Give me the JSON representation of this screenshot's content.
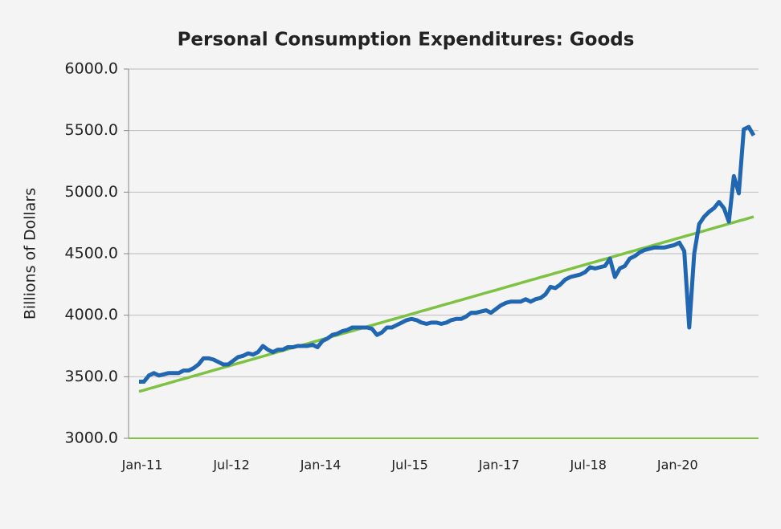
{
  "chart_data": {
    "type": "line",
    "title": "Personal Consumption Expenditures: Goods",
    "ylabel": "Billions of Dollars",
    "categories": [
      "Jan-11",
      null,
      null,
      null,
      null,
      null,
      null,
      null,
      null,
      null,
      null,
      null,
      null,
      null,
      null,
      null,
      null,
      null,
      "Jul-12",
      null,
      null,
      null,
      null,
      null,
      null,
      null,
      null,
      null,
      null,
      null,
      null,
      null,
      null,
      null,
      null,
      null,
      "Jan-14",
      null,
      null,
      null,
      null,
      null,
      null,
      null,
      null,
      null,
      null,
      null,
      null,
      null,
      null,
      null,
      null,
      null,
      "Jul-15",
      null,
      null,
      null,
      null,
      null,
      null,
      null,
      null,
      null,
      null,
      null,
      null,
      null,
      null,
      null,
      null,
      null,
      "Jan-17",
      null,
      null,
      null,
      null,
      null,
      null,
      null,
      null,
      null,
      null,
      null,
      null,
      null,
      null,
      null,
      null,
      null,
      "Jul-18",
      null,
      null,
      null,
      null,
      null,
      null,
      null,
      null,
      null,
      null,
      null,
      null,
      null,
      null,
      null,
      null,
      null,
      "Jan-20",
      null,
      null,
      null,
      null,
      null,
      null,
      null,
      null,
      null,
      null,
      null,
      null,
      null,
      null,
      null,
      null
    ],
    "series": [
      {
        "color": "#2166b0",
        "values": [
          3460,
          3460,
          3510,
          3530,
          3510,
          3520,
          3530,
          3530,
          3530,
          3550,
          3550,
          3570,
          3600,
          3650,
          3650,
          3640,
          3620,
          3600,
          3600,
          3630,
          3660,
          3670,
          3690,
          3680,
          3700,
          3750,
          3720,
          3700,
          3720,
          3720,
          3740,
          3740,
          3750,
          3750,
          3750,
          3760,
          3740,
          3790,
          3810,
          3840,
          3850,
          3870,
          3880,
          3900,
          3900,
          3900,
          3900,
          3890,
          3840,
          3860,
          3900,
          3900,
          3920,
          3940,
          3960,
          3970,
          3960,
          3940,
          3930,
          3940,
          3940,
          3930,
          3940,
          3960,
          3970,
          3970,
          3990,
          4020,
          4020,
          4030,
          4040,
          4020,
          4050,
          4080,
          4100,
          4110,
          4110,
          4110,
          4130,
          4110,
          4130,
          4140,
          4170,
          4230,
          4220,
          4250,
          4290,
          4310,
          4320,
          4330,
          4350,
          4390,
          4380,
          4390,
          4400,
          4460,
          4310,
          4380,
          4400,
          4460,
          4480,
          4510,
          4530,
          4540,
          4550,
          4550,
          4550,
          4560,
          4570,
          4590,
          4520,
          3900,
          4500,
          4740,
          4800,
          4840,
          4870,
          4920,
          4870,
          4760,
          5130,
          4990,
          5510,
          5530,
          5460
        ]
      },
      {
        "color": "#7dc242",
        "values": [
          3380,
          3391,
          3403,
          3414,
          3426,
          3437,
          3449,
          3460,
          3472,
          3483,
          3494,
          3506,
          3517,
          3529,
          3540,
          3552,
          3563,
          3575,
          3586,
          3598,
          3609,
          3620,
          3632,
          3643,
          3655,
          3666,
          3678,
          3689,
          3701,
          3712,
          3724,
          3735,
          3746,
          3758,
          3769,
          3781,
          3792,
          3804,
          3815,
          3827,
          3838,
          3850,
          3861,
          3872,
          3884,
          3895,
          3907,
          3918,
          3930,
          3941,
          3953,
          3964,
          3975,
          3987,
          3998,
          4010,
          4021,
          4033,
          4044,
          4056,
          4067,
          4079,
          4090,
          4101,
          4113,
          4124,
          4136,
          4147,
          4159,
          4170,
          4182,
          4193,
          4204,
          4216,
          4227,
          4239,
          4250,
          4262,
          4273,
          4285,
          4296,
          4308,
          4319,
          4330,
          4342,
          4353,
          4365,
          4376,
          4388,
          4399,
          4411,
          4422,
          4433,
          4445,
          4456,
          4468,
          4479,
          4491,
          4502,
          4514,
          4525,
          4537,
          4548,
          4559,
          4571,
          4582,
          4594,
          4605,
          4617,
          4628,
          4640,
          4651,
          4662,
          4674,
          4685,
          4697,
          4708,
          4720,
          4731,
          4743,
          4754,
          4766,
          4777,
          4788,
          4800
        ]
      }
    ],
    "ylim": [
      3000,
      6000
    ],
    "yticks": [
      {
        "value": 3000,
        "label": "3000.0"
      },
      {
        "value": 3500,
        "label": "3500.0"
      },
      {
        "value": 4000,
        "label": "4000.0"
      },
      {
        "value": 4500,
        "label": "4500.0"
      },
      {
        "value": 5000,
        "label": "5000.0"
      },
      {
        "value": 5500,
        "label": "5500.0"
      },
      {
        "value": 6000,
        "label": "6000.0"
      }
    ],
    "grid": true,
    "axis_color": "#7dc242"
  }
}
